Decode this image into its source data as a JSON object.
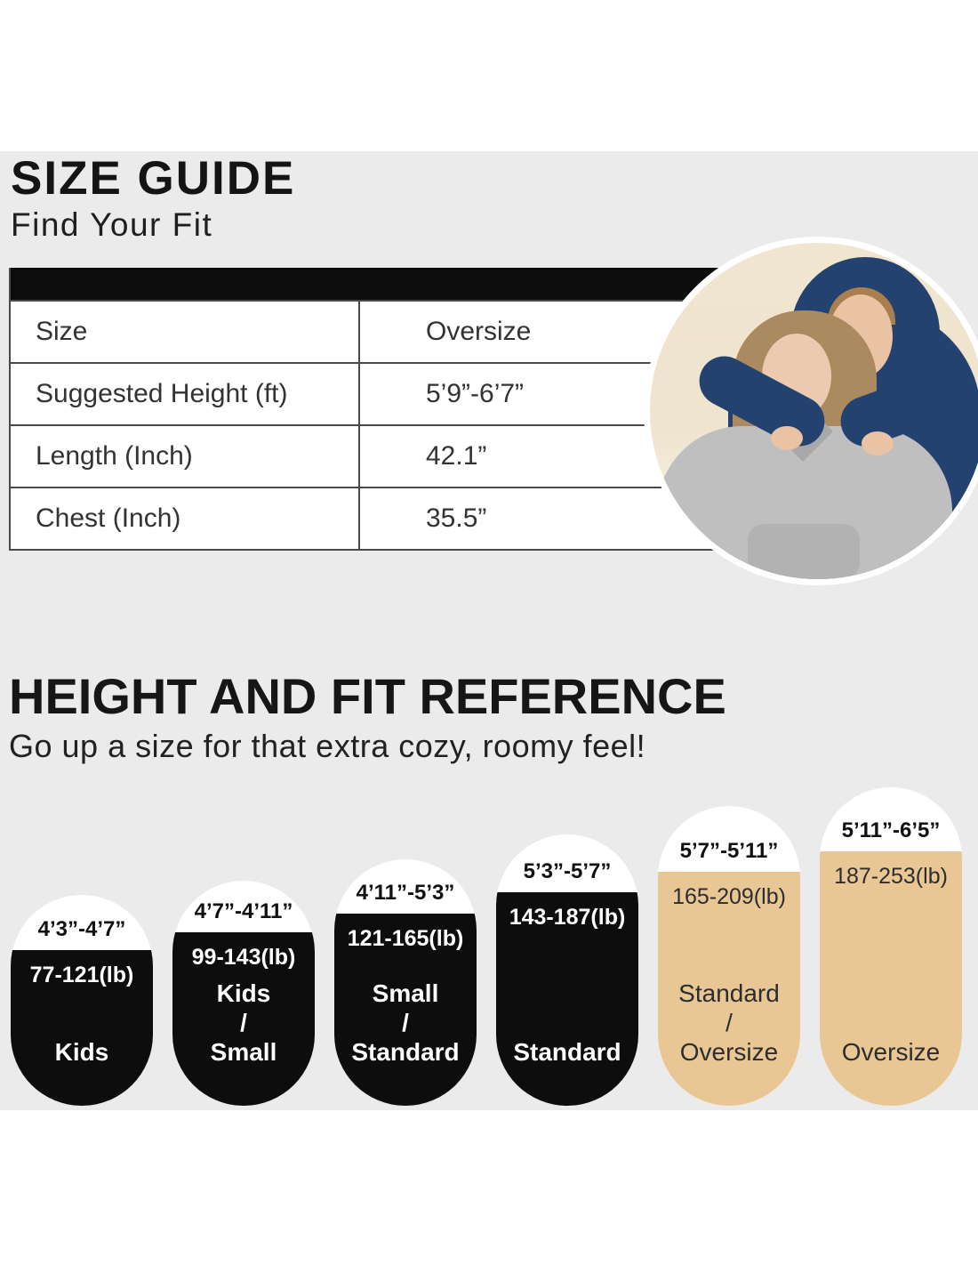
{
  "colors": {
    "background": "#ffffff",
    "panel": "#ebebeb",
    "table_header_bar": "#0c0c0c",
    "pill_black": "#0d0d0d",
    "pill_tan": "#e8c795",
    "photo_backdrop_cream": "#f0e5cf",
    "hoodie_navy": "#24426f",
    "hoodie_gray": "#bfbfbf"
  },
  "size_guide": {
    "title": "SIZE GUIDE",
    "subtitle": "Find Your Fit",
    "table": {
      "rows": [
        {
          "label": "Size",
          "value": "Oversize"
        },
        {
          "label": "Suggested Height (ft)",
          "value": "5’9”-6’7”"
        },
        {
          "label": "Length (Inch)",
          "value": "42.1”"
        },
        {
          "label": "Chest (Inch)",
          "value": "35.5”"
        }
      ]
    }
  },
  "fit_reference": {
    "title": "HEIGHT AND FIT REFERENCE",
    "subtitle": "Go up a size for that extra cozy, roomy feel!",
    "pills": [
      {
        "height_range": "4’3”-4’7”",
        "weight_range": "77-121(lb)",
        "label_lines": [
          "Kids"
        ]
      },
      {
        "height_range": "4’7”-4’11”",
        "weight_range": "99-143(lb)",
        "label_lines": [
          "Kids",
          "/",
          "Small"
        ]
      },
      {
        "height_range": "4’11”-5’3”",
        "weight_range": "121-165(lb)",
        "label_lines": [
          "Small",
          "/",
          "Standard"
        ]
      },
      {
        "height_range": "5’3”-5’7”",
        "weight_range": "143-187(lb)",
        "label_lines": [
          "Standard"
        ]
      },
      {
        "height_range": "5’7”-5’11”",
        "weight_range": "165-209(lb)",
        "label_lines": [
          "Standard",
          "/",
          "Oversize"
        ]
      },
      {
        "height_range": "5’11”-6’5”",
        "weight_range": "187-253(lb)",
        "label_lines": [
          "Oversize"
        ]
      }
    ]
  }
}
